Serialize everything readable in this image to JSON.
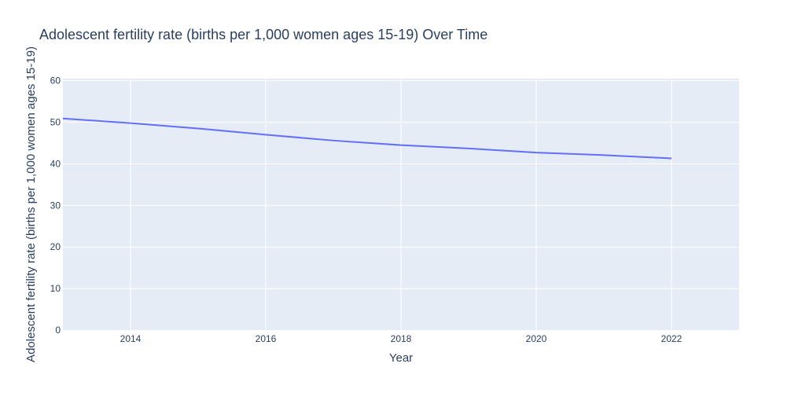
{
  "chart_data": {
    "type": "line",
    "title": "Adolescent fertility rate (births per 1,000 women ages 15-19) Over Time",
    "xlabel": "Year",
    "ylabel": "Adolescent fertility rate (births per 1,000 women ages 15-19)",
    "xlim": [
      2013,
      2023
    ],
    "ylim": [
      0,
      60.5
    ],
    "xticks": [
      2014,
      2016,
      2018,
      2020,
      2022
    ],
    "yticks": [
      0,
      10,
      20,
      30,
      40,
      50,
      60
    ],
    "grid": true,
    "series": [
      {
        "x": [
          2013,
          2014,
          2015,
          2016,
          2017,
          2018,
          2019,
          2020,
          2021,
          2022
        ],
        "values": [
          50.9,
          49.8,
          48.5,
          47.0,
          45.6,
          44.5,
          43.7,
          42.7,
          42.1,
          41.3
        ]
      }
    ],
    "colors": {
      "line": "#636efa",
      "plot_bg": "#e5ecf6",
      "grid": "#ffffff",
      "text": "#2a3f5f"
    }
  }
}
